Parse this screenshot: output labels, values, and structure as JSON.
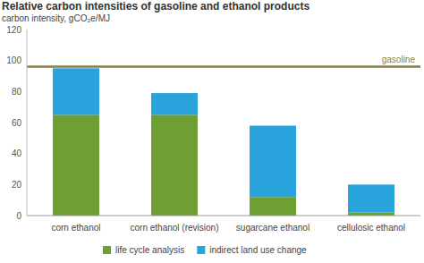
{
  "chart_data": {
    "type": "bar",
    "title": "Relative carbon intensities of gasoline and ethanol products",
    "subtitle": "carbon intensity, gCO₂e/MJ",
    "categories": [
      "corn ethanol",
      "corn ethanol (revision)",
      "sugarcane ethanol",
      "cellulosic ethanol"
    ],
    "series": [
      {
        "name": "life cycle analysis",
        "color": "#6f9e32",
        "type": "bar",
        "values": [
          65,
          65,
          12,
          2
        ]
      },
      {
        "name": "indirect land use change",
        "color": "#29a3dc",
        "type": "bar",
        "values": [
          30,
          14,
          46,
          18
        ]
      },
      {
        "name": "gasoline",
        "color": "#8d7d3f",
        "type": "line",
        "values": [
          96,
          96,
          96,
          96
        ]
      }
    ],
    "stacked": true,
    "ylim": [
      0,
      120
    ],
    "yticks": [
      0,
      20,
      40,
      60,
      80,
      100,
      120
    ],
    "grid": false,
    "legend": "bottom"
  }
}
